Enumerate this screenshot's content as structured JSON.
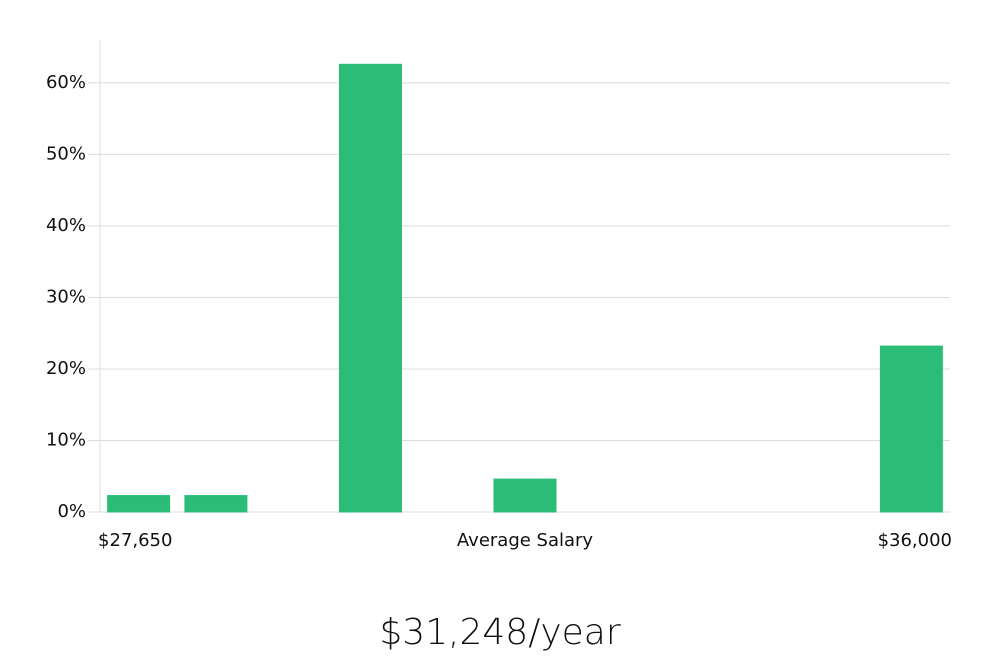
{
  "chart_data": {
    "type": "bar",
    "categories": [
      null,
      null,
      null,
      null,
      null,
      null,
      null,
      null,
      null,
      null,
      null
    ],
    "values": [
      2.3,
      2.3,
      0,
      62.6,
      0,
      4.6,
      0,
      0,
      0,
      0,
      23.2
    ],
    "colors": [
      "#2bbd77",
      "#2bbd77",
      "#2bbd77",
      "#2bbd77",
      "#222222",
      "#2bbd77",
      "#2bbd77",
      "#2bbd77",
      "#2bbd77",
      "#2bbd77",
      "#2bbd77"
    ],
    "ylim": [
      0,
      66
    ],
    "yticks": [
      {
        "value": 0,
        "label": "0%"
      },
      {
        "value": 10,
        "label": "10%"
      },
      {
        "value": 20,
        "label": "20%"
      },
      {
        "value": 30,
        "label": "30%"
      },
      {
        "value": 40,
        "label": "40%"
      },
      {
        "value": 50,
        "label": "50%"
      },
      {
        "value": 60,
        "label": "60%"
      }
    ],
    "grid": true,
    "x_min_label": "$27,650",
    "x_label": "Average Salary",
    "x_max_label": "$36,000",
    "annotation": "$31,248/year"
  }
}
